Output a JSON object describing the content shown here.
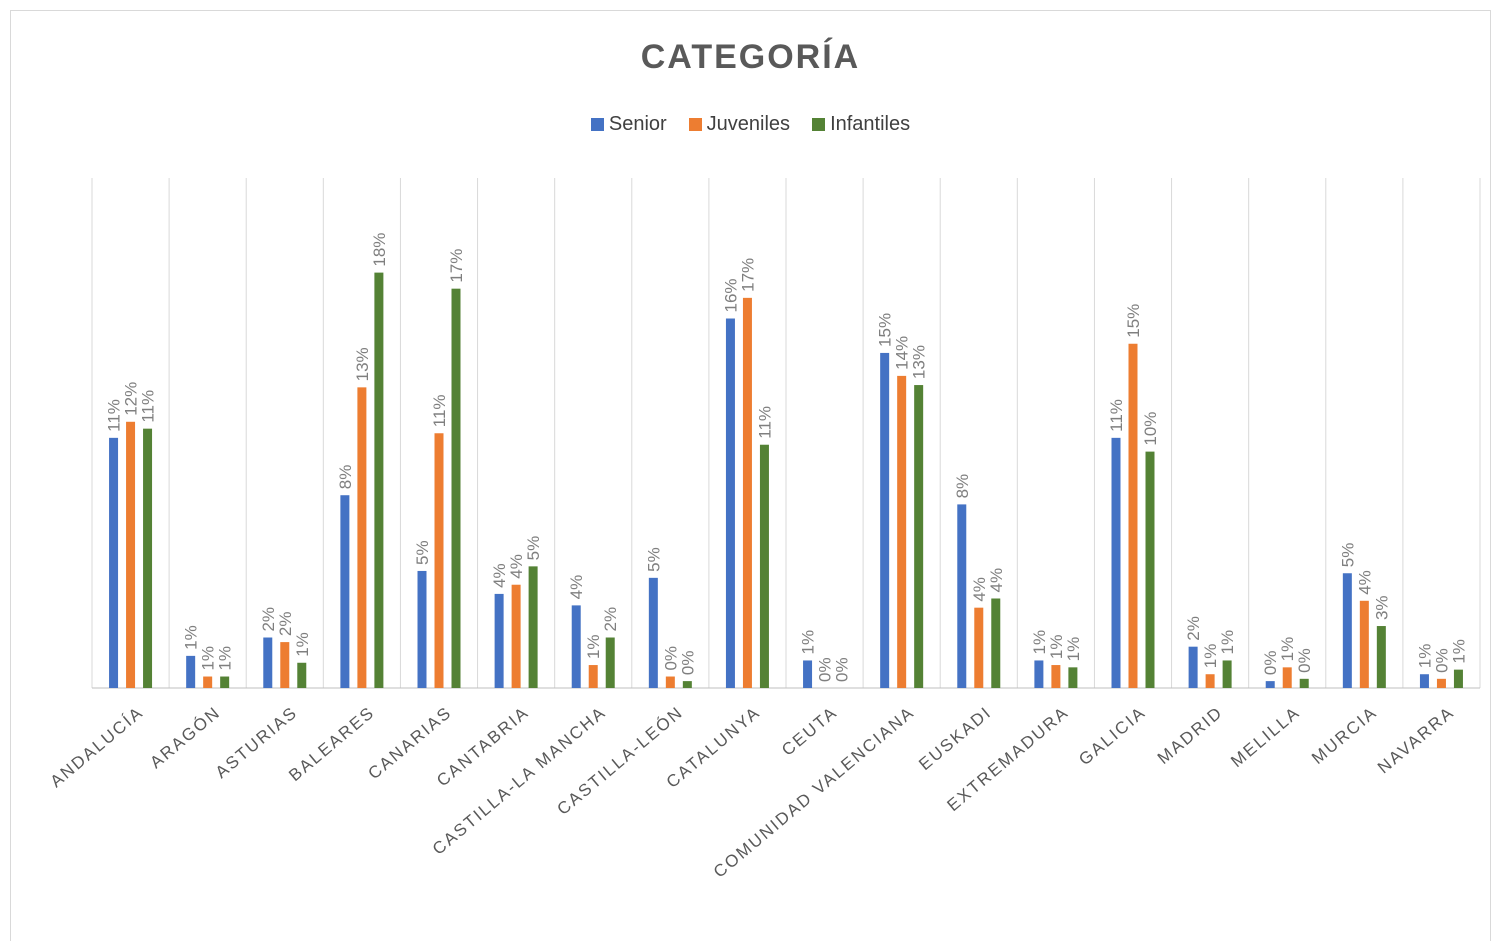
{
  "chart_data": {
    "type": "bar",
    "title": "CATEGORÍA",
    "categories": [
      "ANDALUCÍA",
      "ARAGÓN",
      "ASTURIAS",
      "BALEARES",
      "CANARIAS",
      "CANTABRIA",
      "CASTILLA-LA MANCHA",
      "CASTILLA-LEÓN",
      "CATALUNYA",
      "CEUTA",
      "COMUNIDAD VALENCIANA",
      "EUSKADI",
      "EXTREMADURA",
      "GALICIA",
      "MADRID",
      "MELILLA",
      "MURCIA",
      "NAVARRA"
    ],
    "series": [
      {
        "name": "Senior",
        "color": "#4472c4",
        "values": [
          10.9,
          1.4,
          2.2,
          8.4,
          5.1,
          4.1,
          3.6,
          4.8,
          16.1,
          1.2,
          14.6,
          8.0,
          1.2,
          10.9,
          1.8,
          0.3,
          5.0,
          0.6
        ],
        "labels": [
          "11%",
          "1%",
          "2%",
          "8%",
          "5%",
          "4%",
          "4%",
          "5%",
          "16%",
          "1%",
          "15%",
          "8%",
          "1%",
          "11%",
          "2%",
          "0%",
          "5%",
          "1%"
        ]
      },
      {
        "name": "Juveniles",
        "color": "#ed7d31",
        "values": [
          11.6,
          0.5,
          2.0,
          13.1,
          11.1,
          4.5,
          1.0,
          0.5,
          17.0,
          0.0,
          13.6,
          3.5,
          1.0,
          15.0,
          0.6,
          0.9,
          3.8,
          0.4
        ],
        "labels": [
          "12%",
          "1%",
          "2%",
          "13%",
          "11%",
          "4%",
          "1%",
          "0%",
          "17%",
          "0%",
          "14%",
          "4%",
          "1%",
          "15%",
          "1%",
          "1%",
          "4%",
          "0%"
        ]
      },
      {
        "name": "Infantiles",
        "color": "#548235",
        "values": [
          11.3,
          0.5,
          1.1,
          18.1,
          17.4,
          5.3,
          2.2,
          0.3,
          10.6,
          0.0,
          13.2,
          3.9,
          0.9,
          10.3,
          1.2,
          0.4,
          2.7,
          0.8
        ],
        "labels": [
          "11%",
          "1%",
          "1%",
          "18%",
          "17%",
          "5%",
          "2%",
          "0%",
          "11%",
          "0%",
          "13%",
          "4%",
          "1%",
          "10%",
          "1%",
          "0%",
          "3%",
          "1%"
        ]
      }
    ],
    "ylim": [
      0,
      20
    ],
    "grid": "vertical",
    "legend_position": "top"
  }
}
